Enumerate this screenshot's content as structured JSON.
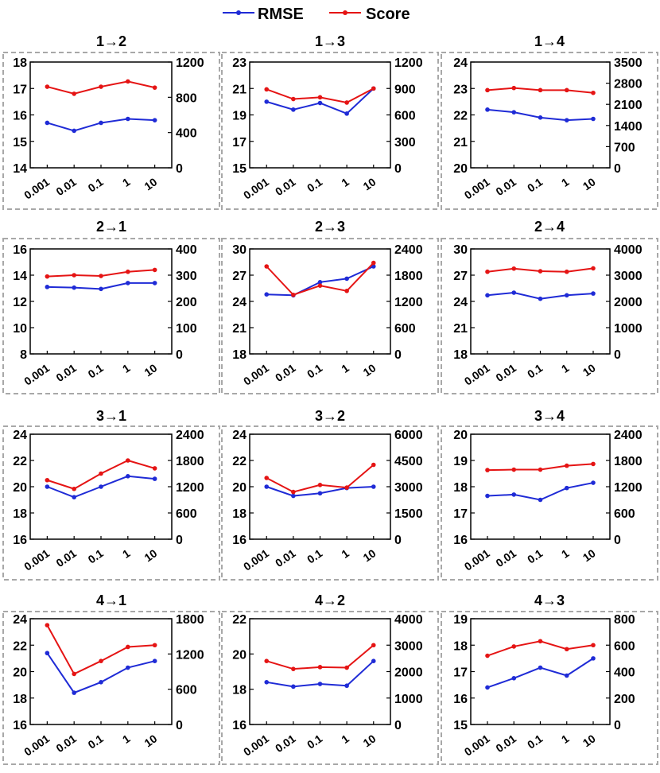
{
  "legend": {
    "items": [
      {
        "label": "RMSE",
        "color": "#1f2bd6"
      },
      {
        "label": "Score",
        "color": "#e51414"
      }
    ]
  },
  "colors": {
    "rmse": "#1f2bd6",
    "score": "#e51414",
    "frame": "#a8a8a8"
  },
  "chart_data": [
    {
      "type": "line",
      "title": "1→2",
      "categories": [
        "0.001",
        "0.01",
        "0.1",
        "1",
        "10"
      ],
      "series": [
        {
          "name": "RMSE",
          "axis": "left",
          "values": [
            15.7,
            15.4,
            15.7,
            15.85,
            15.8
          ]
        },
        {
          "name": "Score",
          "axis": "right",
          "values": [
            920,
            840,
            920,
            980,
            910
          ]
        }
      ],
      "left_ylim": [
        14,
        18
      ],
      "left_ticks": [
        "14",
        "15",
        "16",
        "17",
        "18"
      ],
      "right_ylim": [
        0,
        1200
      ],
      "right_ticks": [
        "0",
        "400",
        "800",
        "1200"
      ]
    },
    {
      "type": "line",
      "title": "1→3",
      "categories": [
        "0.001",
        "0.01",
        "0.1",
        "1",
        "10"
      ],
      "series": [
        {
          "name": "RMSE",
          "axis": "left",
          "values": [
            20.0,
            19.4,
            19.9,
            19.1,
            21.0
          ]
        },
        {
          "name": "Score",
          "axis": "right",
          "values": [
            890,
            780,
            800,
            740,
            900
          ]
        }
      ],
      "left_ylim": [
        15,
        23
      ],
      "left_ticks": [
        "15",
        "17",
        "19",
        "21",
        "23"
      ],
      "right_ylim": [
        0,
        1200
      ],
      "right_ticks": [
        "0",
        "300",
        "600",
        "900",
        "1200"
      ]
    },
    {
      "type": "line",
      "title": "1→4",
      "categories": [
        "0.001",
        "0.01",
        "0.1",
        "1",
        "10"
      ],
      "series": [
        {
          "name": "RMSE",
          "axis": "left",
          "values": [
            22.2,
            22.1,
            21.9,
            21.8,
            21.85
          ]
        },
        {
          "name": "Score",
          "axis": "right",
          "values": [
            2570,
            2640,
            2570,
            2570,
            2480
          ]
        }
      ],
      "left_ylim": [
        20,
        24
      ],
      "left_ticks": [
        "20",
        "21",
        "22",
        "23",
        "24"
      ],
      "right_ylim": [
        0,
        3500
      ],
      "right_ticks": [
        "0",
        "700",
        "1400",
        "2100",
        "2800",
        "3500"
      ]
    },
    {
      "type": "line",
      "title": "2→1",
      "categories": [
        "0.001",
        "0.01",
        "0.1",
        "1",
        "10"
      ],
      "series": [
        {
          "name": "RMSE",
          "axis": "left",
          "values": [
            13.1,
            13.05,
            12.95,
            13.4,
            13.4
          ]
        },
        {
          "name": "Score",
          "axis": "right",
          "values": [
            295,
            300,
            297,
            313,
            320
          ]
        }
      ],
      "left_ylim": [
        8,
        16
      ],
      "left_ticks": [
        "8",
        "10",
        "12",
        "14",
        "16"
      ],
      "right_ylim": [
        0,
        400
      ],
      "right_ticks": [
        "0",
        "100",
        "200",
        "300",
        "400"
      ]
    },
    {
      "type": "line",
      "title": "2→3",
      "categories": [
        "0.001",
        "0.01",
        "0.1",
        "1",
        "10"
      ],
      "series": [
        {
          "name": "RMSE",
          "axis": "left",
          "values": [
            24.8,
            24.7,
            26.2,
            26.6,
            28.0
          ]
        },
        {
          "name": "Score",
          "axis": "right",
          "values": [
            2000,
            1350,
            1560,
            1440,
            2080
          ]
        }
      ],
      "left_ylim": [
        18,
        30
      ],
      "left_ticks": [
        "18",
        "21",
        "24",
        "27",
        "30"
      ],
      "right_ylim": [
        0,
        2400
      ],
      "right_ticks": [
        "0",
        "600",
        "1200",
        "1800",
        "2400"
      ]
    },
    {
      "type": "line",
      "title": "2→4",
      "categories": [
        "0.001",
        "0.01",
        "0.1",
        "1",
        "10"
      ],
      "series": [
        {
          "name": "RMSE",
          "axis": "left",
          "values": [
            24.7,
            25.0,
            24.3,
            24.7,
            24.9
          ]
        },
        {
          "name": "Score",
          "axis": "right",
          "values": [
            3130,
            3250,
            3150,
            3130,
            3260
          ]
        }
      ],
      "left_ylim": [
        18,
        30
      ],
      "left_ticks": [
        "18",
        "21",
        "24",
        "27",
        "30"
      ],
      "right_ylim": [
        0,
        4000
      ],
      "right_ticks": [
        "0",
        "1000",
        "2000",
        "3000",
        "4000"
      ]
    },
    {
      "type": "line",
      "title": "3→1",
      "categories": [
        "0.001",
        "0.01",
        "0.1",
        "1",
        "10"
      ],
      "series": [
        {
          "name": "RMSE",
          "axis": "left",
          "values": [
            20.0,
            19.2,
            20.0,
            20.8,
            20.6
          ]
        },
        {
          "name": "Score",
          "axis": "right",
          "values": [
            1350,
            1150,
            1500,
            1800,
            1620
          ]
        }
      ],
      "left_ylim": [
        16,
        24
      ],
      "left_ticks": [
        "16",
        "18",
        "20",
        "22",
        "24"
      ],
      "right_ylim": [
        0,
        2400
      ],
      "right_ticks": [
        "0",
        "600",
        "1200",
        "1800",
        "2400"
      ]
    },
    {
      "type": "line",
      "title": "3→2",
      "categories": [
        "0.001",
        "0.01",
        "0.1",
        "1",
        "10"
      ],
      "series": [
        {
          "name": "RMSE",
          "axis": "left",
          "values": [
            20.0,
            19.3,
            19.5,
            19.9,
            20.0
          ]
        },
        {
          "name": "Score",
          "axis": "right",
          "values": [
            3500,
            2700,
            3100,
            2950,
            4250
          ]
        }
      ],
      "left_ylim": [
        16,
        24
      ],
      "left_ticks": [
        "16",
        "18",
        "20",
        "22",
        "24"
      ],
      "right_ylim": [
        0,
        6000
      ],
      "right_ticks": [
        "0",
        "1500",
        "3000",
        "4500",
        "6000"
      ]
    },
    {
      "type": "line",
      "title": "3→4",
      "categories": [
        "0.001",
        "0.01",
        "0.1",
        "1",
        "10"
      ],
      "series": [
        {
          "name": "RMSE",
          "axis": "left",
          "values": [
            17.65,
            17.7,
            17.5,
            17.95,
            18.15
          ]
        },
        {
          "name": "Score",
          "axis": "right",
          "values": [
            1580,
            1590,
            1590,
            1680,
            1720
          ]
        }
      ],
      "left_ylim": [
        16,
        20
      ],
      "left_ticks": [
        "16",
        "17",
        "18",
        "19",
        "20"
      ],
      "right_ylim": [
        0,
        2400
      ],
      "right_ticks": [
        "0",
        "600",
        "1200",
        "1800",
        "2400"
      ]
    },
    {
      "type": "line",
      "title": "4→1",
      "categories": [
        "0.001",
        "0.01",
        "0.1",
        "1",
        "10"
      ],
      "series": [
        {
          "name": "RMSE",
          "axis": "left",
          "values": [
            21.4,
            18.4,
            19.2,
            20.3,
            20.8
          ]
        },
        {
          "name": "Score",
          "axis": "right",
          "values": [
            1690,
            860,
            1080,
            1320,
            1350
          ]
        }
      ],
      "left_ylim": [
        16,
        24
      ],
      "left_ticks": [
        "16",
        "18",
        "20",
        "22",
        "24"
      ],
      "right_ylim": [
        0,
        1800
      ],
      "right_ticks": [
        "0",
        "600",
        "1200",
        "1800"
      ]
    },
    {
      "type": "line",
      "title": "4→2",
      "categories": [
        "0.001",
        "0.01",
        "0.1",
        "1",
        "10"
      ],
      "series": [
        {
          "name": "RMSE",
          "axis": "left",
          "values": [
            18.4,
            18.15,
            18.3,
            18.2,
            19.6
          ]
        },
        {
          "name": "Score",
          "axis": "right",
          "values": [
            2400,
            2100,
            2170,
            2150,
            3000
          ]
        }
      ],
      "left_ylim": [
        16,
        22
      ],
      "left_ticks": [
        "16",
        "18",
        "20",
        "22"
      ],
      "right_ylim": [
        0,
        4000
      ],
      "right_ticks": [
        "0",
        "1000",
        "2000",
        "3000",
        "4000"
      ]
    },
    {
      "type": "line",
      "title": "4→3",
      "categories": [
        "0.001",
        "0.01",
        "0.1",
        "1",
        "10"
      ],
      "series": [
        {
          "name": "RMSE",
          "axis": "left",
          "values": [
            16.4,
            16.75,
            17.15,
            16.85,
            17.5
          ]
        },
        {
          "name": "Score",
          "axis": "right",
          "values": [
            520,
            590,
            630,
            570,
            600
          ]
        }
      ],
      "left_ylim": [
        15,
        19
      ],
      "left_ticks": [
        "15",
        "16",
        "17",
        "18",
        "19"
      ],
      "right_ylim": [
        0,
        800
      ],
      "right_ticks": [
        "0",
        "200",
        "400",
        "600",
        "800"
      ]
    }
  ]
}
